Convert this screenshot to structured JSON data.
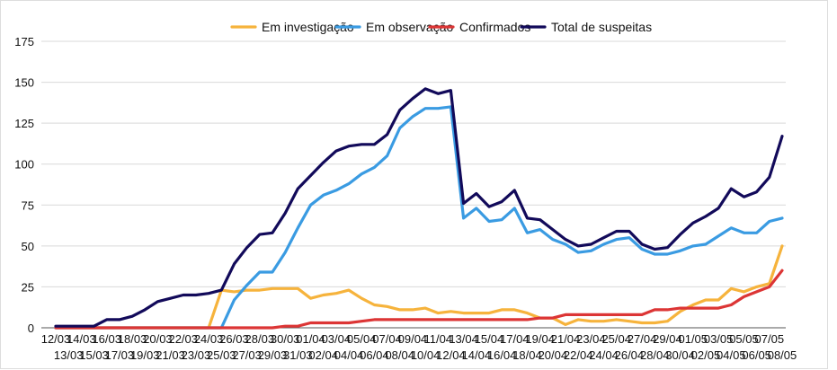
{
  "chart_data": {
    "type": "line",
    "title": "",
    "xlabel": "",
    "ylabel": "",
    "ylim": [
      0,
      175
    ],
    "yticks": [
      0,
      25,
      50,
      75,
      100,
      125,
      150,
      175
    ],
    "grid": "horizontal",
    "legend_position": "top",
    "x": [
      "12/03",
      "13/03",
      "14/03",
      "15/03",
      "16/03",
      "17/03",
      "18/03",
      "19/03",
      "20/03",
      "21/03",
      "22/03",
      "23/03",
      "24/03",
      "25/03",
      "26/03",
      "27/03",
      "28/03",
      "29/03",
      "30/03",
      "31/03",
      "01/04",
      "02/04",
      "03/04",
      "04/04",
      "05/04",
      "06/04",
      "07/04",
      "08/04",
      "09/04",
      "10/04",
      "11/04",
      "12/04",
      "13/04",
      "14/04",
      "15/04",
      "16/04",
      "17/04",
      "18/04",
      "19/04",
      "20/04",
      "21/04",
      "22/04",
      "23/04",
      "24/04",
      "25/04",
      "26/04",
      "27/04",
      "28/04",
      "29/04",
      "30/04",
      "01/05",
      "02/05",
      "03/05",
      "04/05",
      "05/05",
      "06/05",
      "07/05",
      "08/05"
    ],
    "series": [
      {
        "name": "Em investigação",
        "color": "#f6b33c",
        "values": [
          0,
          0,
          0,
          0,
          0,
          0,
          0,
          0,
          0,
          0,
          0,
          0,
          0,
          23,
          22,
          23,
          23,
          24,
          24,
          24,
          18,
          20,
          21,
          23,
          18,
          14,
          13,
          11,
          11,
          12,
          9,
          10,
          9,
          9,
          9,
          11,
          11,
          9,
          6,
          6,
          2,
          5,
          4,
          4,
          5,
          4,
          3,
          3,
          4,
          10,
          14,
          17,
          17,
          24,
          22,
          25,
          27,
          50
        ]
      },
      {
        "name": "Em observação",
        "color": "#3a9be2",
        "values": [
          0,
          0,
          0,
          0,
          0,
          0,
          0,
          0,
          0,
          0,
          0,
          0,
          0,
          0,
          17,
          26,
          34,
          34,
          46,
          61,
          75,
          81,
          84,
          88,
          94,
          98,
          105,
          122,
          129,
          134,
          134,
          135,
          67,
          73,
          65,
          66,
          73,
          58,
          60,
          54,
          51,
          46,
          47,
          51,
          54,
          55,
          48,
          45,
          45,
          47,
          50,
          51,
          56,
          61,
          58,
          58,
          65,
          67
        ]
      },
      {
        "name": "Confirmados",
        "color": "#dc3535",
        "values": [
          0,
          0,
          0,
          0,
          0,
          0,
          0,
          0,
          0,
          0,
          0,
          0,
          0,
          0,
          0,
          0,
          0,
          0,
          1,
          1,
          3,
          3,
          3,
          3,
          4,
          5,
          5,
          5,
          5,
          5,
          5,
          5,
          5,
          5,
          5,
          5,
          5,
          5,
          6,
          6,
          8,
          8,
          8,
          8,
          8,
          8,
          8,
          11,
          11,
          12,
          12,
          12,
          12,
          14,
          19,
          22,
          25,
          35
        ]
      },
      {
        "name": "Total de suspeitas",
        "color": "#120a5a",
        "values": [
          1,
          1,
          1,
          1,
          5,
          5,
          7,
          11,
          16,
          18,
          20,
          20,
          21,
          23,
          39,
          49,
          57,
          58,
          70,
          85,
          93,
          101,
          108,
          111,
          112,
          112,
          118,
          133,
          140,
          146,
          143,
          145,
          76,
          82,
          74,
          77,
          84,
          67,
          66,
          60,
          54,
          50,
          51,
          55,
          59,
          59,
          51,
          48,
          49,
          57,
          64,
          68,
          73,
          85,
          80,
          83,
          92,
          117
        ]
      }
    ]
  }
}
